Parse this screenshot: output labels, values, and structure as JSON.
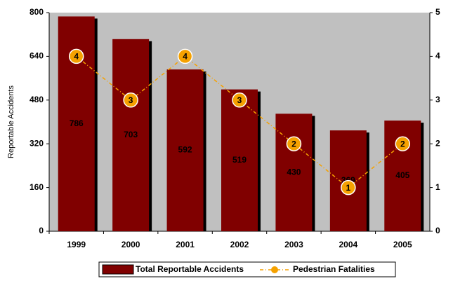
{
  "chart_data": {
    "type": "bar",
    "ylabel": "Reportable Accidents",
    "categories": [
      "1999",
      "2000",
      "2001",
      "2002",
      "2003",
      "2004",
      "2005"
    ],
    "series": [
      {
        "name": "Total Reportable Accidents",
        "color": "#800000",
        "type": "bar",
        "values": [
          786,
          703,
          592,
          519,
          430,
          369,
          405
        ]
      },
      {
        "name": "Pedestrian Fatalities",
        "color": "#f5a100",
        "type": "line",
        "axis": "y2",
        "values": [
          4,
          3,
          4,
          3,
          2,
          1,
          2
        ]
      }
    ],
    "ylim": [
      0,
      800
    ],
    "yticks": [
      0,
      160,
      320,
      480,
      640,
      800
    ],
    "y2lim": [
      0,
      5
    ],
    "y2ticks": [
      0,
      1,
      2,
      3,
      4,
      5
    ],
    "plot_background": "#c0c0c0",
    "legend": "bottom"
  }
}
